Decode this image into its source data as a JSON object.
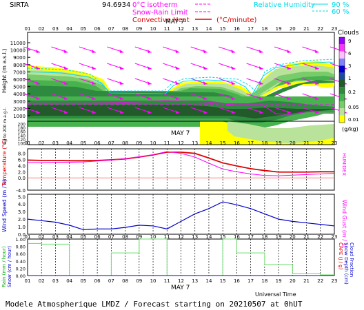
{
  "header": {
    "site": "SIRTA",
    "coords": "94.6934",
    "legend_isotherm": "0°C isotherm",
    "legend_snowrain": "Snow-Rain Limit",
    "legend_convective": "Convective Heat",
    "legend_convective_unit": "(°C/minute)",
    "legend_rh": "Relative Humidity",
    "rh90": "90 %",
    "rh60": "60 %",
    "colors": {
      "isotherm": "#ff00ff",
      "convective": "#e00000",
      "rh": "#00d8e8"
    }
  },
  "hours": [
    "01",
    "02",
    "03",
    "04",
    "05",
    "06",
    "07",
    "08",
    "09",
    "10",
    "11",
    "12",
    "13",
    "14",
    "15",
    "16",
    "17",
    "18",
    "19",
    "20",
    "21",
    "22",
    "23"
  ],
  "date_label": "MAY  7",
  "panel1": {
    "ylabel_top": "Height  (m a.s.l.)",
    "ylabel_bottom": "Up to 200 m a.g.l.",
    "yticks_top": [
      "11000",
      "10000",
      "9000",
      "8000",
      "7000",
      "6000",
      "5000",
      "4000",
      "3000",
      "2000",
      "1000"
    ],
    "yticks_bottom": [
      "200",
      "180",
      "160",
      "140",
      "120",
      "100"
    ],
    "colorbar_title": "Clouds",
    "colorbar_labels": [
      "9",
      "6",
      "3",
      "1",
      "0.2",
      "0.05",
      "0.01"
    ],
    "colorbar_unit": "(g/kg)",
    "colorbar_colors": [
      "#9a00ff",
      "#ff33ff",
      "#ffc0ff",
      "#8080ff",
      "#0000cc",
      "#1b4c9c",
      "#225a2a",
      "#2e8a3e",
      "#47b24e",
      "#79cc6a",
      "#b9e39a",
      "#ffff00"
    ]
  },
  "panel2": {
    "ylabel_left": "Temperature (°C)",
    "ylabel_right": "HUMIDEX",
    "yticks": [
      "8.0",
      "6.0",
      "4.0",
      "2.0",
      "0.0"
    ],
    "date_label": "MAY  7"
  },
  "panel3": {
    "ylabel_left": "Wind Speed (m / s)",
    "ylabel_right": "Wind Gust (m / s)",
    "yticks": [
      "5.0",
      "4.0",
      "3.0",
      "2.0",
      "1.0",
      "0.0"
    ]
  },
  "panel4": {
    "ylabel_left_1": "Rain (mm / hour)",
    "ylabel_left_2": "Snow (cm / hour)",
    "ylabel_right_1": "CAPE (J / g)",
    "ylabel_right_2": "Snow Depth (cm)",
    "ylabel_right_3": "Cloud Fraction",
    "yticks": [
      "1.00",
      "0.80",
      "0.60",
      "0.40",
      "0.20",
      "0.00"
    ],
    "date_label": "MAY  7",
    "xlabel": "Universal Time"
  },
  "footer": "Modele Atmospherique LMDZ / Forecast starting on 20210507 at 0hUT",
  "chart_data": [
    {
      "type": "line",
      "title": "Temperature",
      "x": [
        "01",
        "02",
        "03",
        "04",
        "05",
        "06",
        "07",
        "08",
        "09",
        "10",
        "11",
        "12",
        "13",
        "14",
        "15",
        "16",
        "17",
        "18",
        "19",
        "20",
        "21",
        "22",
        "23"
      ],
      "series": [
        {
          "name": "Temperature",
          "values": [
            5.8,
            5.7,
            5.7,
            5.6,
            5.6,
            5.7,
            5.9,
            6.2,
            6.8,
            7.5,
            8.4,
            8.4,
            8.0,
            6.5,
            4.9,
            3.9,
            3.0,
            2.4,
            1.9,
            1.9,
            1.9,
            2.0,
            2.0
          ]
        },
        {
          "name": "HUMIDEX",
          "values": [
            5.0,
            5.0,
            5.1,
            5.1,
            5.2,
            5.5,
            5.8,
            6.3,
            6.9,
            7.6,
            8.6,
            8.0,
            6.8,
            4.8,
            2.9,
            2.0,
            1.3,
            0.8,
            0.7,
            0.9,
            1.1,
            1.3,
            1.5
          ]
        }
      ],
      "ylim": [
        -4.0,
        9.5
      ]
    },
    {
      "type": "line",
      "title": "Wind Speed",
      "x": [
        "01",
        "02",
        "03",
        "04",
        "05",
        "06",
        "07",
        "08",
        "09",
        "10",
        "11",
        "12",
        "13",
        "14",
        "15",
        "16",
        "17",
        "18",
        "19",
        "20",
        "21",
        "22",
        "23"
      ],
      "series": [
        {
          "name": "Wind Speed",
          "values": [
            2.0,
            1.8,
            1.6,
            1.2,
            0.6,
            0.7,
            0.7,
            0.9,
            1.2,
            1.1,
            0.7,
            1.7,
            2.7,
            3.4,
            4.3,
            3.9,
            3.4,
            2.7,
            2.0,
            1.7,
            1.5,
            1.3,
            1.1
          ]
        }
      ],
      "ylim": [
        0,
        5.3
      ]
    },
    {
      "type": "bar",
      "title": "Cloud Fraction",
      "x": [
        "01",
        "02",
        "03",
        "04",
        "05",
        "06",
        "07",
        "08",
        "09",
        "10",
        "11",
        "12",
        "13",
        "14",
        "15",
        "16",
        "17",
        "18",
        "19",
        "20",
        "21",
        "22",
        "23"
      ],
      "series": [
        {
          "name": "Cloud Fraction",
          "values": [
            0.88,
            0.86,
            0.86,
            0.0,
            0.0,
            0.0,
            0.62,
            0.62,
            1.0,
            1.0,
            0.0,
            0.0,
            0.0,
            0.0,
            1.0,
            0.62,
            0.62,
            0.3,
            0.3,
            0.05,
            0.05,
            0.02,
            0.02
          ]
        }
      ],
      "ylim": [
        0,
        1.0
      ]
    }
  ]
}
